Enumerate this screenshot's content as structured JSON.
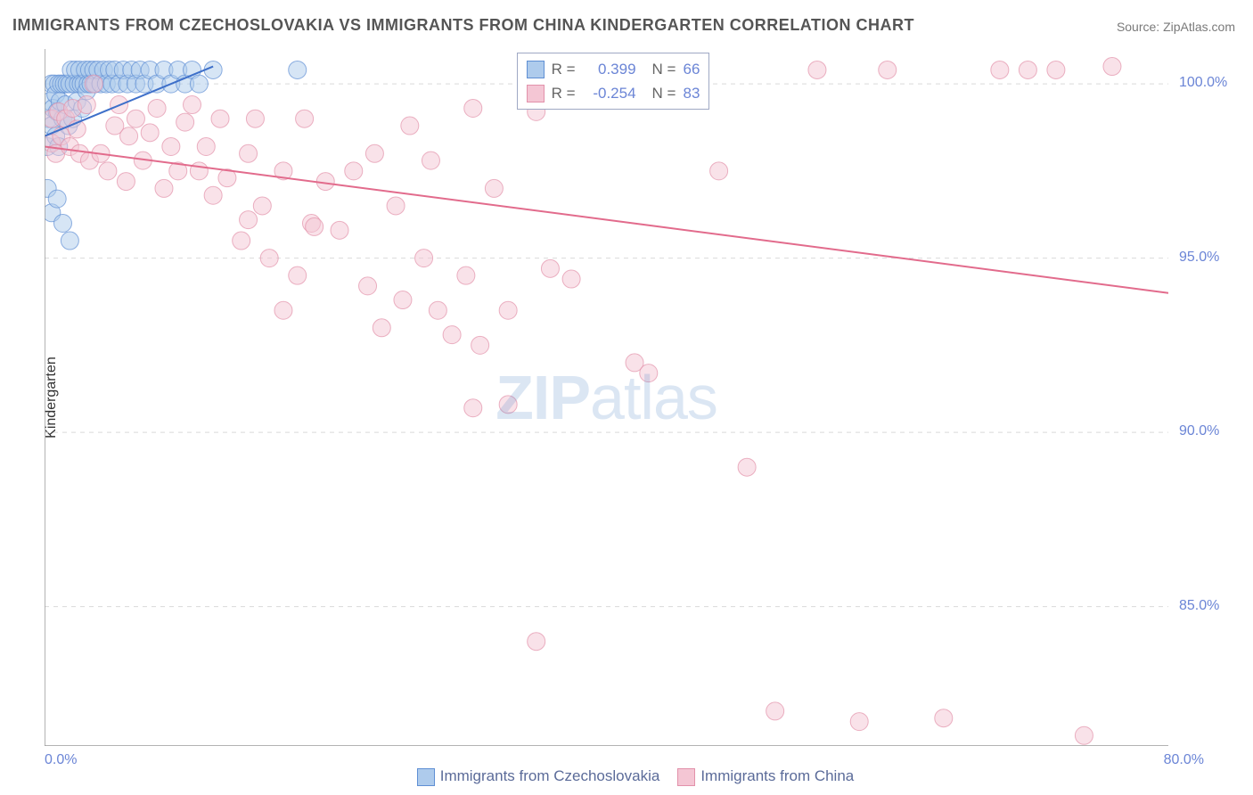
{
  "title": "IMMIGRANTS FROM CZECHOSLOVAKIA VS IMMIGRANTS FROM CHINA KINDERGARTEN CORRELATION CHART",
  "source": "Source: ZipAtlas.com",
  "ylabel": "Kindergarten",
  "watermark": {
    "bold": "ZIP",
    "rest": "atlas"
  },
  "legend_stats": {
    "series": [
      {
        "swatch_fill": "#aecbec",
        "swatch_stroke": "#5f8fd4",
        "r_label": "R =",
        "r_value": "0.399",
        "n_label": "N =",
        "n_value": "66"
      },
      {
        "swatch_fill": "#f4c6d4",
        "swatch_stroke": "#e291aa",
        "r_label": "R =",
        "r_value": "-0.254",
        "n_label": "N =",
        "n_value": "83"
      }
    ],
    "r_color": "#6b85d6",
    "label_color": "#666666"
  },
  "legend_bottom": {
    "items": [
      {
        "swatch_fill": "#aecbec",
        "swatch_stroke": "#5f8fd4",
        "label": "Immigrants from Czechoslovakia"
      },
      {
        "swatch_fill": "#f4c6d4",
        "swatch_stroke": "#e291aa",
        "label": "Immigrants from China"
      }
    ],
    "text_color": "#5b6b99"
  },
  "chart": {
    "type": "scatter",
    "background_color": "#ffffff",
    "plot_border": "#9a9a9a",
    "grid_color": "#d9d9d9",
    "xlim": [
      0,
      80
    ],
    "ylim": [
      81,
      101
    ],
    "xticks": [
      0,
      10,
      20,
      30,
      40,
      50,
      60,
      70,
      80
    ],
    "yticks": [
      85,
      90,
      95,
      100
    ],
    "xtick_labels": {
      "0": "0.0%",
      "80": "80.0%"
    },
    "ytick_labels": {
      "85": "85.0%",
      "90": "90.0%",
      "95": "95.0%",
      "100": "100.0%"
    },
    "tick_label_color": "#6b85d6",
    "tick_label_fontsize": 16,
    "marker_radius": 10,
    "marker_opacity": 0.5,
    "series": [
      {
        "name": "czechoslovakia",
        "color_fill": "#aecbec",
        "color_stroke": "#5f8fd4",
        "line_color": "#3d6fc9",
        "line_width": 2,
        "trend": {
          "x1": 0,
          "y1": 98.5,
          "x2": 12,
          "y2": 100.5
        },
        "points": [
          [
            0.2,
            98.2
          ],
          [
            0.2,
            97.0
          ],
          [
            0.3,
            99.0
          ],
          [
            0.4,
            99.5
          ],
          [
            0.5,
            100.0
          ],
          [
            0.5,
            98.8
          ],
          [
            0.6,
            99.3
          ],
          [
            0.7,
            100.0
          ],
          [
            0.8,
            99.7
          ],
          [
            0.8,
            98.5
          ],
          [
            0.9,
            99.2
          ],
          [
            1.0,
            100.0
          ],
          [
            1.0,
            98.2
          ],
          [
            1.1,
            99.5
          ],
          [
            1.2,
            100.0
          ],
          [
            1.3,
            99.0
          ],
          [
            1.4,
            100.0
          ],
          [
            1.5,
            99.4
          ],
          [
            1.6,
            100.0
          ],
          [
            1.7,
            98.8
          ],
          [
            1.8,
            100.0
          ],
          [
            1.9,
            100.4
          ],
          [
            2.0,
            99.0
          ],
          [
            2.1,
            100.0
          ],
          [
            2.2,
            100.4
          ],
          [
            2.3,
            99.5
          ],
          [
            2.4,
            100.0
          ],
          [
            2.5,
            100.4
          ],
          [
            2.6,
            100.0
          ],
          [
            2.7,
            99.3
          ],
          [
            2.8,
            100.0
          ],
          [
            2.9,
            100.4
          ],
          [
            3.0,
            99.8
          ],
          [
            3.1,
            100.0
          ],
          [
            3.2,
            100.4
          ],
          [
            3.3,
            100.0
          ],
          [
            3.5,
            100.4
          ],
          [
            3.6,
            100.0
          ],
          [
            3.8,
            100.4
          ],
          [
            4.0,
            100.0
          ],
          [
            4.2,
            100.4
          ],
          [
            4.4,
            100.0
          ],
          [
            4.6,
            100.4
          ],
          [
            4.8,
            100.0
          ],
          [
            5.0,
            100.4
          ],
          [
            5.3,
            100.0
          ],
          [
            5.6,
            100.4
          ],
          [
            5.9,
            100.0
          ],
          [
            6.2,
            100.4
          ],
          [
            6.5,
            100.0
          ],
          [
            6.8,
            100.4
          ],
          [
            7.1,
            100.0
          ],
          [
            7.5,
            100.4
          ],
          [
            8.0,
            100.0
          ],
          [
            8.5,
            100.4
          ],
          [
            9.0,
            100.0
          ],
          [
            9.5,
            100.4
          ],
          [
            10.0,
            100.0
          ],
          [
            10.5,
            100.4
          ],
          [
            11.0,
            100.0
          ],
          [
            12.0,
            100.4
          ],
          [
            18.0,
            100.4
          ],
          [
            0.5,
            96.3
          ],
          [
            0.9,
            96.7
          ],
          [
            1.3,
            96.0
          ],
          [
            1.8,
            95.5
          ]
        ]
      },
      {
        "name": "china",
        "color_fill": "#f4c6d4",
        "color_stroke": "#e291aa",
        "line_color": "#e26b8c",
        "line_width": 2,
        "trend": {
          "x1": 0,
          "y1": 98.2,
          "x2": 80,
          "y2": 94.0
        },
        "points": [
          [
            0.5,
            98.3
          ],
          [
            0.5,
            99.0
          ],
          [
            0.8,
            98.0
          ],
          [
            1.0,
            99.2
          ],
          [
            1.2,
            98.5
          ],
          [
            1.5,
            99.0
          ],
          [
            1.8,
            98.2
          ],
          [
            2.0,
            99.3
          ],
          [
            2.3,
            98.7
          ],
          [
            2.5,
            98.0
          ],
          [
            3.0,
            99.4
          ],
          [
            3.2,
            97.8
          ],
          [
            3.5,
            100.0
          ],
          [
            4.0,
            98.0
          ],
          [
            4.5,
            97.5
          ],
          [
            5.0,
            98.8
          ],
          [
            5.3,
            99.4
          ],
          [
            5.8,
            97.2
          ],
          [
            6.0,
            98.5
          ],
          [
            6.5,
            99.0
          ],
          [
            7.0,
            97.8
          ],
          [
            7.5,
            98.6
          ],
          [
            8.0,
            99.3
          ],
          [
            8.5,
            97.0
          ],
          [
            9.0,
            98.2
          ],
          [
            9.5,
            97.5
          ],
          [
            10.0,
            98.9
          ],
          [
            10.5,
            99.4
          ],
          [
            11.0,
            97.5
          ],
          [
            11.5,
            98.2
          ],
          [
            12.0,
            96.8
          ],
          [
            12.5,
            99.0
          ],
          [
            13.0,
            97.3
          ],
          [
            14.0,
            95.5
          ],
          [
            14.5,
            98.0
          ],
          [
            15.0,
            99.0
          ],
          [
            15.5,
            96.5
          ],
          [
            16.0,
            95.0
          ],
          [
            17.0,
            97.5
          ],
          [
            18.0,
            94.5
          ],
          [
            18.5,
            99.0
          ],
          [
            19.0,
            96.0
          ],
          [
            20.0,
            97.2
          ],
          [
            21.0,
            95.8
          ],
          [
            22.0,
            97.5
          ],
          [
            23.0,
            94.2
          ],
          [
            23.5,
            98.0
          ],
          [
            24.0,
            93.0
          ],
          [
            25.0,
            96.5
          ],
          [
            25.5,
            93.8
          ],
          [
            26.0,
            98.8
          ],
          [
            27.0,
            95.0
          ],
          [
            27.5,
            97.8
          ],
          [
            28.0,
            93.5
          ],
          [
            29.0,
            92.8
          ],
          [
            30.0,
            94.5
          ],
          [
            30.5,
            99.3
          ],
          [
            30.5,
            90.7
          ],
          [
            31.0,
            92.5
          ],
          [
            32.0,
            97.0
          ],
          [
            33.0,
            93.5
          ],
          [
            33.0,
            90.8
          ],
          [
            35.0,
            99.2
          ],
          [
            36.0,
            94.7
          ],
          [
            37.5,
            94.4
          ],
          [
            42.0,
            92.0
          ],
          [
            43.0,
            91.7
          ],
          [
            48.0,
            97.5
          ],
          [
            50.0,
            89.0
          ],
          [
            52.0,
            82.0
          ],
          [
            55.0,
            100.4
          ],
          [
            58.0,
            81.7
          ],
          [
            60.0,
            100.4
          ],
          [
            64.0,
            81.8
          ],
          [
            68.0,
            100.4
          ],
          [
            70.0,
            100.4
          ],
          [
            72.0,
            100.4
          ],
          [
            74.0,
            81.3
          ],
          [
            76.0,
            100.5
          ],
          [
            14.5,
            96.1
          ],
          [
            19.2,
            95.9
          ],
          [
            17.0,
            93.5
          ],
          [
            35.0,
            84.0
          ]
        ]
      }
    ]
  }
}
